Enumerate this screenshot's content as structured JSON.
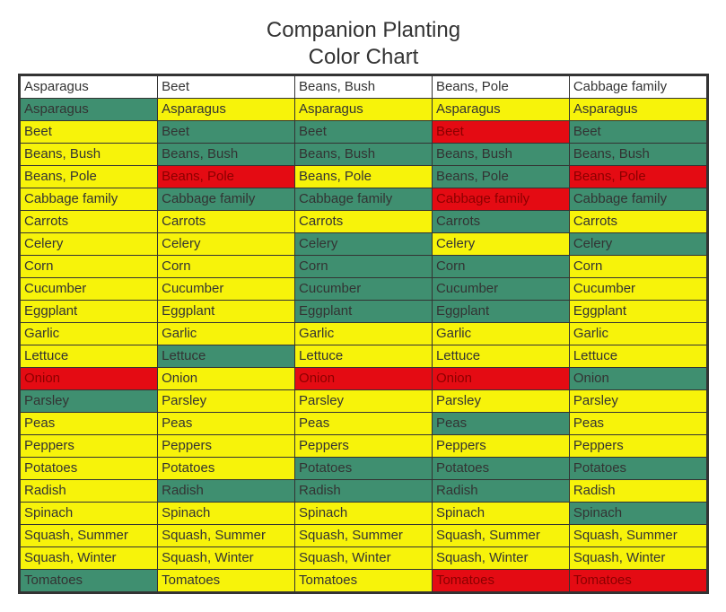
{
  "title_line1": "Companion Planting",
  "title_line2": "Color Chart",
  "colors": {
    "green": "#3f8f70",
    "yellow": "#f7f30a",
    "red": "#e40b13",
    "text_normal": "#333333",
    "text_on_red": "#8b0000",
    "border": "#333333",
    "header_bg": "#ffffff"
  },
  "fontsize_title": 24,
  "fontsize_cell": 15,
  "columns": [
    "Asparagus",
    "Beet",
    "Beans, Bush",
    "Beans, Pole",
    "Cabbage family"
  ],
  "plants": [
    "Asparagus",
    "Beet",
    "Beans, Bush",
    "Beans, Pole",
    "Cabbage family",
    "Carrots",
    "Celery",
    "Corn",
    "Cucumber",
    "Eggplant",
    "Garlic",
    "Lettuce",
    "Onion",
    "Parsley",
    "Peas",
    "Peppers",
    "Potatoes",
    "Radish",
    "Spinach",
    "Squash, Summer",
    "Squash, Winter",
    "Tomatoes"
  ],
  "grid_colors": [
    [
      "green",
      "yellow",
      "yellow",
      "yellow",
      "yellow"
    ],
    [
      "yellow",
      "green",
      "green",
      "red",
      "green"
    ],
    [
      "yellow",
      "green",
      "green",
      "green",
      "green"
    ],
    [
      "yellow",
      "red",
      "yellow",
      "green",
      "red"
    ],
    [
      "yellow",
      "green",
      "green",
      "red",
      "green"
    ],
    [
      "yellow",
      "yellow",
      "yellow",
      "green",
      "yellow"
    ],
    [
      "yellow",
      "yellow",
      "green",
      "yellow",
      "green"
    ],
    [
      "yellow",
      "yellow",
      "green",
      "green",
      "yellow"
    ],
    [
      "yellow",
      "yellow",
      "green",
      "green",
      "yellow"
    ],
    [
      "yellow",
      "yellow",
      "green",
      "green",
      "yellow"
    ],
    [
      "yellow",
      "yellow",
      "yellow",
      "yellow",
      "yellow"
    ],
    [
      "yellow",
      "green",
      "yellow",
      "yellow",
      "yellow"
    ],
    [
      "red",
      "yellow",
      "red",
      "red",
      "green"
    ],
    [
      "green",
      "yellow",
      "yellow",
      "yellow",
      "yellow"
    ],
    [
      "yellow",
      "yellow",
      "yellow",
      "green",
      "yellow"
    ],
    [
      "yellow",
      "yellow",
      "yellow",
      "yellow",
      "yellow"
    ],
    [
      "yellow",
      "yellow",
      "green",
      "green",
      "green"
    ],
    [
      "yellow",
      "green",
      "green",
      "green",
      "yellow"
    ],
    [
      "yellow",
      "yellow",
      "yellow",
      "yellow",
      "green"
    ],
    [
      "yellow",
      "yellow",
      "yellow",
      "yellow",
      "yellow"
    ],
    [
      "yellow",
      "yellow",
      "yellow",
      "yellow",
      "yellow"
    ],
    [
      "green",
      "yellow",
      "yellow",
      "red",
      "red"
    ]
  ]
}
